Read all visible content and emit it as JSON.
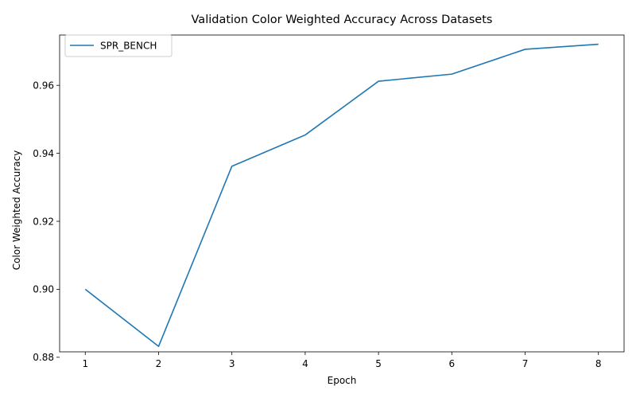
{
  "chart_data": {
    "type": "line",
    "title": "Validation Color Weighted Accuracy Across Datasets",
    "xlabel": "Epoch",
    "ylabel": "Color Weighted Accuracy",
    "x": [
      1,
      2,
      3,
      4,
      5,
      6,
      7,
      8
    ],
    "xticks": [
      "1",
      "2",
      "3",
      "4",
      "5",
      "6",
      "7",
      "8"
    ],
    "yticks": [
      "0.88",
      "0.90",
      "0.92",
      "0.94",
      "0.96"
    ],
    "ytick_values": [
      0.88,
      0.9,
      0.92,
      0.94,
      0.96
    ],
    "xlim": [
      0.65,
      8.35
    ],
    "ylim": [
      0.8816,
      0.9748
    ],
    "grid": false,
    "legend_position": "top-left",
    "series": [
      {
        "name": "SPR_BENCH",
        "color": "#1f77b4",
        "values": [
          0.9,
          0.8832,
          0.9362,
          0.9454,
          0.9612,
          0.9633,
          0.9706,
          0.9721
        ]
      }
    ]
  }
}
